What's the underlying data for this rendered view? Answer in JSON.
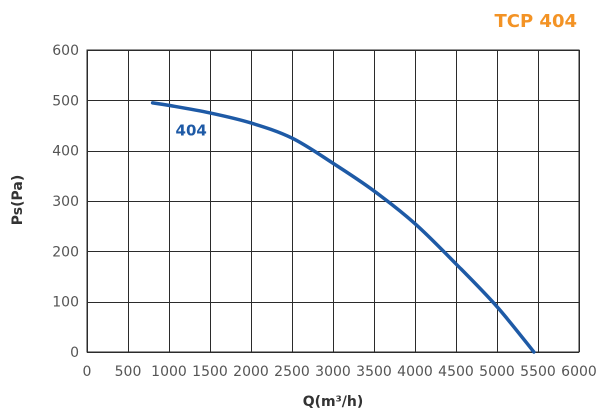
{
  "chart_data": {
    "type": "line",
    "title": "TCP 404",
    "xlabel": "Q(m³/h)",
    "ylabel": "Ps(Pa)",
    "xlim": [
      0,
      6000
    ],
    "ylim": [
      0,
      600
    ],
    "x_ticks": [
      0,
      500,
      1000,
      1500,
      2000,
      2500,
      3000,
      3500,
      4000,
      4500,
      5000,
      5500,
      6000
    ],
    "y_ticks": [
      0,
      100,
      200,
      300,
      400,
      500,
      600
    ],
    "grid": true,
    "legend": "none",
    "series": [
      {
        "name": "404",
        "x": [
          800,
          1000,
          1500,
          2000,
          2500,
          3000,
          3500,
          4000,
          4500,
          5000,
          5450
        ],
        "y": [
          495,
          490,
          475,
          455,
          425,
          375,
          320,
          255,
          175,
          90,
          0
        ]
      }
    ]
  },
  "colors": {
    "title": "#F39325",
    "curve": "#1E5AA6",
    "grid": "#2B2B2B",
    "tick_text": "#555555",
    "axis_title": "#333333"
  }
}
